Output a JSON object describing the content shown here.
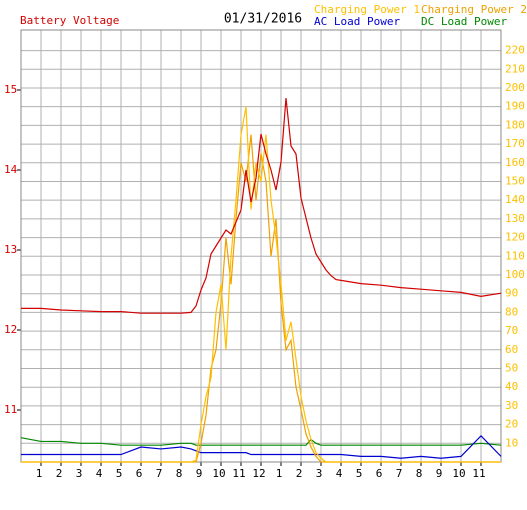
{
  "chart_data": {
    "type": "line",
    "title": "01/31/2016",
    "x": [
      0,
      1,
      2,
      3,
      4,
      5,
      6,
      7,
      8,
      8.5,
      8.75,
      9,
      9.25,
      9.5,
      9.75,
      10,
      10.25,
      10.5,
      10.75,
      11,
      11.25,
      11.5,
      11.75,
      12,
      12.25,
      12.5,
      12.75,
      13,
      13.25,
      13.5,
      13.75,
      14,
      14.25,
      14.5,
      14.75,
      15,
      15.25,
      15.5,
      15.75,
      16,
      17,
      18,
      19,
      20,
      21,
      22,
      23,
      24
    ],
    "series": [
      {
        "name": "Battery Voltage",
        "color": "#d40000",
        "axis": "y",
        "values": [
          12.27,
          12.27,
          12.25,
          12.24,
          12.23,
          12.23,
          12.21,
          12.21,
          12.21,
          12.22,
          12.3,
          12.5,
          12.65,
          12.95,
          13.05,
          13.15,
          13.25,
          13.2,
          13.35,
          13.5,
          14.0,
          13.6,
          13.9,
          14.45,
          14.2,
          14.0,
          13.75,
          14.1,
          14.9,
          14.3,
          14.2,
          13.65,
          13.4,
          13.15,
          12.95,
          12.85,
          12.75,
          12.68,
          12.63,
          12.62,
          12.58,
          12.56,
          12.53,
          12.51,
          12.49,
          12.47,
          12.42,
          12.46
        ]
      },
      {
        "name": "Charging Power 1",
        "color": "#ffc000",
        "axis": "y2",
        "values": [
          0,
          0,
          0,
          0,
          0,
          0,
          0,
          0,
          0,
          0,
          1,
          20,
          35,
          45,
          80,
          95,
          60,
          110,
          140,
          175,
          190,
          135,
          160,
          150,
          175,
          140,
          120,
          95,
          65,
          75,
          55,
          35,
          22,
          12,
          5,
          2,
          0,
          0,
          0,
          0,
          0,
          0,
          0,
          0,
          0,
          0,
          0,
          0
        ]
      },
      {
        "name": "Charging Power 2",
        "color": "#f0a000",
        "axis": "y2",
        "values": [
          0,
          0,
          0,
          0,
          0,
          0,
          0,
          0,
          0,
          0,
          0,
          10,
          25,
          50,
          60,
          85,
          120,
          95,
          130,
          160,
          150,
          175,
          140,
          165,
          150,
          110,
          130,
          85,
          60,
          65,
          40,
          28,
          15,
          8,
          3,
          0,
          0,
          0,
          0,
          0,
          0,
          0,
          0,
          0,
          0,
          0,
          0,
          0
        ]
      },
      {
        "name": "AC Load Power",
        "color": "#0000d0",
        "axis": "y2",
        "values": [
          4,
          4,
          4,
          4,
          4,
          4,
          8,
          7,
          8,
          7,
          6,
          5,
          5,
          5,
          5,
          5,
          5,
          5,
          5,
          5,
          5,
          4,
          4,
          4,
          4,
          4,
          4,
          4,
          4,
          4,
          4,
          4,
          4,
          4,
          4,
          4,
          4,
          4,
          4,
          4,
          3,
          3,
          2,
          3,
          2,
          3,
          14,
          3
        ]
      },
      {
        "name": "DC Load Power",
        "color": "#008800",
        "axis": "y2",
        "values": [
          13,
          11,
          11,
          10,
          10,
          9,
          9,
          9,
          10,
          10,
          9,
          9,
          9,
          9,
          9,
          9,
          9,
          9,
          9,
          9,
          9,
          9,
          9,
          9,
          9,
          9,
          9,
          9,
          9,
          9,
          9,
          9,
          9,
          12,
          10,
          9,
          9,
          9,
          9,
          9,
          9,
          9,
          9,
          9,
          9,
          9,
          10,
          9
        ]
      }
    ],
    "xlim": [
      0,
      24
    ],
    "xticks": [
      1,
      2,
      3,
      4,
      5,
      6,
      7,
      8,
      9,
      10,
      11,
      12,
      {
        "value": 13,
        "label": "1"
      },
      {
        "value": 14,
        "label": "2"
      },
      {
        "value": 15,
        "label": "3"
      },
      {
        "value": 16,
        "label": "4"
      },
      {
        "value": 17,
        "label": "5"
      },
      {
        "value": 18,
        "label": "6"
      },
      {
        "value": 19,
        "label": "7"
      },
      {
        "value": 20,
        "label": "8"
      },
      {
        "value": 21,
        "label": "9"
      },
      {
        "value": 22,
        "label": "10"
      },
      {
        "value": 23,
        "label": "11"
      }
    ],
    "ylim": [
      10.35,
      15.75
    ],
    "yticks": [
      11,
      12,
      13,
      14,
      15
    ],
    "y2lim": [
      0,
      231
    ],
    "y2ticks": [
      10,
      20,
      30,
      40,
      50,
      60,
      70,
      80,
      90,
      100,
      110,
      120,
      130,
      140,
      150,
      160,
      170,
      180,
      190,
      200,
      210,
      220
    ],
    "grid": true,
    "legend": "top-right"
  }
}
